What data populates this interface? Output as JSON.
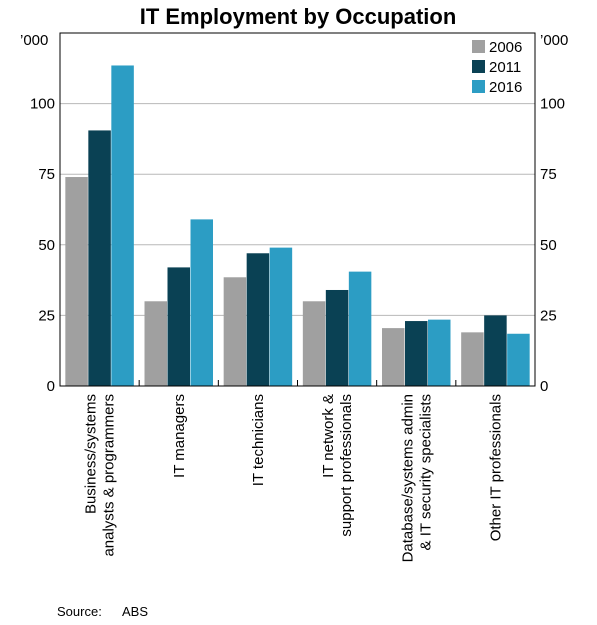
{
  "chart_data": {
    "type": "bar",
    "title": "IT Employment by Occupation",
    "unit_left": "’000",
    "unit_right": "’000",
    "ylim": [
      0,
      125
    ],
    "yticks": [
      0,
      25,
      50,
      75,
      100
    ],
    "grid": true,
    "legend_position": "top-right",
    "categories": [
      [
        "Business/systems",
        "analysts & programmers"
      ],
      [
        "IT managers"
      ],
      [
        "IT technicians"
      ],
      [
        "IT network &",
        "support professionals"
      ],
      [
        "Database/systems admin",
        "& IT security specialists"
      ],
      [
        "Other IT professionals"
      ]
    ],
    "series": [
      {
        "name": "2006",
        "color": "#a0a0a0",
        "values": [
          74,
          30,
          38.5,
          30,
          20.5,
          19
        ]
      },
      {
        "name": "2011",
        "color": "#0a4154",
        "values": [
          90.5,
          42,
          47,
          34,
          23,
          25
        ]
      },
      {
        "name": "2016",
        "color": "#2c9dc4",
        "values": [
          113.5,
          59,
          49,
          40.5,
          23.5,
          18.5
        ]
      }
    ]
  },
  "source": {
    "label": "Source:",
    "value": "ABS"
  }
}
